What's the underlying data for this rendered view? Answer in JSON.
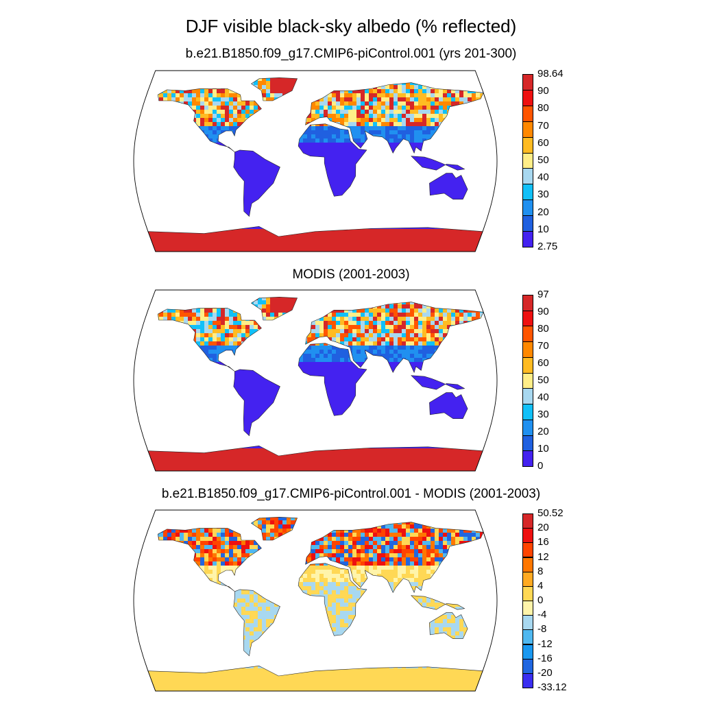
{
  "title": "DJF visible black-sky albedo (% reflected)",
  "panels": [
    {
      "id": "model",
      "title": "b.e21.B1850.f09_g17.CMIP6-piControl.001 (yrs 201-300)",
      "colorbar": {
        "labels": [
          "98.64",
          "90",
          "80",
          "70",
          "60",
          "50",
          "40",
          "30",
          "20",
          "10",
          "2.75"
        ],
        "colors": [
          "#d62728",
          "#ee1010",
          "#ff5500",
          "#ff8800",
          "#ffbb22",
          "#ffee88",
          "#a8d8f0",
          "#11c0f8",
          "#2090f0",
          "#2060e0",
          "#4422f0"
        ]
      }
    },
    {
      "id": "modis",
      "title": "MODIS (2001-2003)",
      "colorbar": {
        "labels": [
          "97",
          "90",
          "80",
          "70",
          "60",
          "50",
          "40",
          "30",
          "20",
          "10",
          "0"
        ],
        "colors": [
          "#d62728",
          "#ee1010",
          "#ff5500",
          "#ff8800",
          "#ffbb22",
          "#ffee88",
          "#a8d8f0",
          "#11c0f8",
          "#2090f0",
          "#2060e0",
          "#4422f0"
        ]
      }
    },
    {
      "id": "diff",
      "title": "b.e21.B1850.f09_g17.CMIP6-piControl.001 - MODIS (2001-2003)",
      "colorbar": {
        "labels": [
          "50.52",
          "20",
          "16",
          "12",
          "8",
          "4",
          "0",
          "-4",
          "-8",
          "-12",
          "-16",
          "-20",
          "-33.12"
        ],
        "colors": [
          "#d62728",
          "#ee1010",
          "#ff4400",
          "#ff7700",
          "#ffaa22",
          "#ffd855",
          "#fff4aa",
          "#a8d8f0",
          "#50b8f0",
          "#1a98f0",
          "#2066e0",
          "#3a2ef0"
        ]
      }
    }
  ]
}
